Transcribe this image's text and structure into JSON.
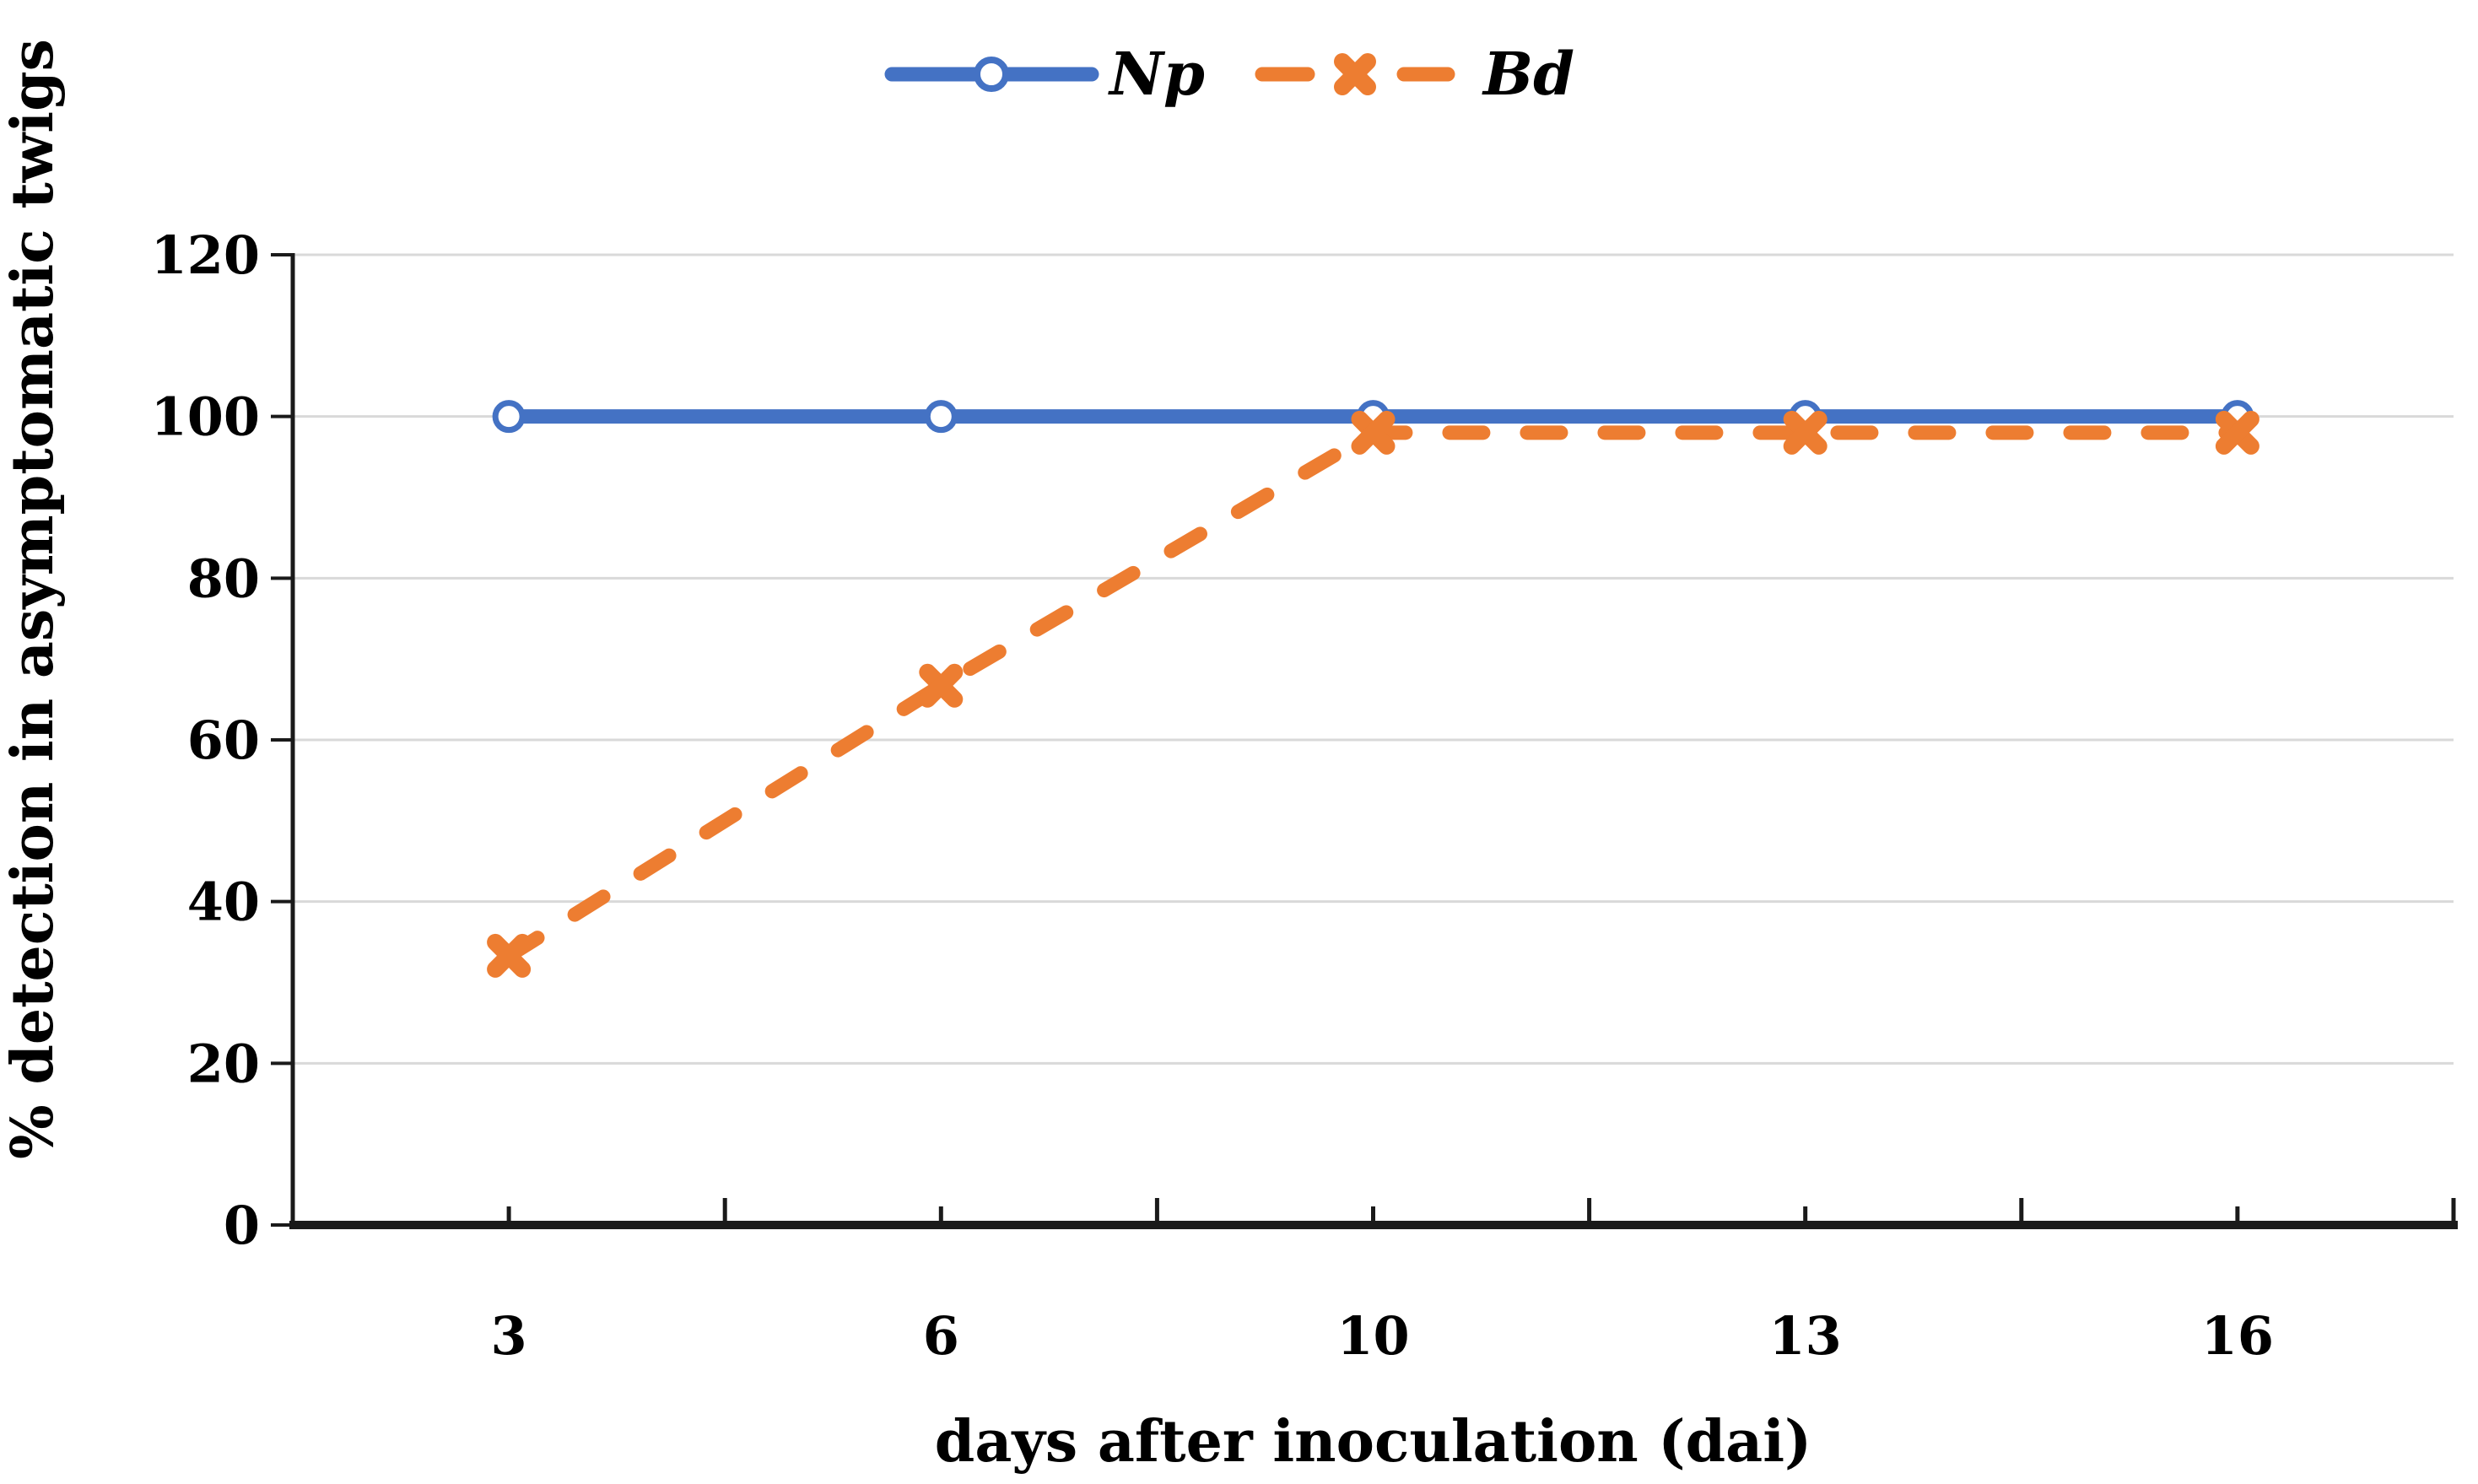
{
  "figure": {
    "background": "#FFFFFF"
  },
  "chart_data": {
    "type": "line",
    "title": "",
    "categories": [
      "3",
      "6",
      "10",
      "13",
      "16"
    ],
    "x_values": [
      3,
      6,
      10,
      13,
      16
    ],
    "series": [
      {
        "name": "Np",
        "values": [
          100,
          100,
          100,
          100,
          100
        ],
        "color": "#4472C4",
        "line_style": "solid",
        "marker": "open-circle"
      },
      {
        "name": "Bd",
        "values": [
          33.3,
          66.7,
          98,
          98,
          98
        ],
        "color": "#ED7D31",
        "line_style": "dashed",
        "marker": "x-cross"
      }
    ],
    "xlabel": "days after inoculation (dai)",
    "ylabel": "% detection in asymptomatic twigs",
    "ylim": [
      0,
      120
    ],
    "yticks": [
      0,
      20,
      40,
      60,
      80,
      100,
      120
    ],
    "grid": "horizontal-only",
    "legend_position": "top-center",
    "colors": {
      "gridline": "#D9D9D9",
      "axis": "#1A1A1A",
      "text": "#000000",
      "np_blue": "#4472C4",
      "bd_orange": "#ED7D31"
    }
  }
}
